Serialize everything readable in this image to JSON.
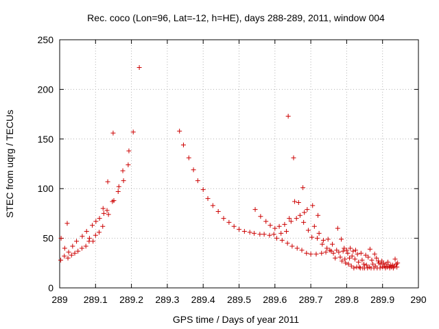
{
  "chart_data": {
    "type": "scatter",
    "title": "Rec. coco (Lon=96, Lat=-12, h=HE), days 288-289, 2011, window 004",
    "xlabel": "GPS time / Days of year 2011",
    "ylabel": "STEC from uqrg / TECUs",
    "xlim": [
      289,
      290
    ],
    "ylim": [
      0,
      250
    ],
    "xticks": [
      "289",
      "289.1",
      "289.2",
      "289.3",
      "289.4",
      "289.5",
      "289.6",
      "289.7",
      "289.8",
      "289.9",
      "290"
    ],
    "yticks": [
      "0",
      "50",
      "100",
      "150",
      "200",
      "250"
    ],
    "grid": true,
    "marker": "+",
    "color": "#cc0000",
    "series": [
      {
        "name": "STEC",
        "points": [
          [
            289.003,
            28
          ],
          [
            289.004,
            50
          ],
          [
            289.013,
            32
          ],
          [
            289.014,
            40
          ],
          [
            289.021,
            65
          ],
          [
            289.023,
            30
          ],
          [
            289.025,
            36
          ],
          [
            289.033,
            33
          ],
          [
            289.036,
            42
          ],
          [
            289.042,
            35
          ],
          [
            289.047,
            47
          ],
          [
            289.051,
            37
          ],
          [
            289.062,
            40
          ],
          [
            289.063,
            52
          ],
          [
            289.073,
            42
          ],
          [
            289.075,
            57
          ],
          [
            289.082,
            47
          ],
          [
            289.083,
            50
          ],
          [
            289.091,
            63
          ],
          [
            289.093,
            47
          ],
          [
            289.1,
            53
          ],
          [
            289.101,
            67
          ],
          [
            289.11,
            56
          ],
          [
            289.111,
            70
          ],
          [
            289.12,
            62
          ],
          [
            289.121,
            80
          ],
          [
            289.123,
            75
          ],
          [
            289.132,
            78
          ],
          [
            289.134,
            107
          ],
          [
            289.136,
            74
          ],
          [
            289.147,
            87
          ],
          [
            289.149,
            156
          ],
          [
            289.151,
            88
          ],
          [
            289.163,
            97
          ],
          [
            289.165,
            102
          ],
          [
            289.176,
            118
          ],
          [
            289.178,
            108
          ],
          [
            289.191,
            124
          ],
          [
            289.193,
            138
          ],
          [
            289.205,
            157
          ],
          [
            289.222,
            222
          ],
          [
            289.334,
            158
          ],
          [
            289.345,
            144
          ],
          [
            289.36,
            131
          ],
          [
            289.373,
            119
          ],
          [
            289.385,
            108
          ],
          [
            289.4,
            99
          ],
          [
            289.413,
            90
          ],
          [
            289.427,
            83
          ],
          [
            289.442,
            77
          ],
          [
            289.457,
            70
          ],
          [
            289.472,
            66
          ],
          [
            289.486,
            62
          ],
          [
            289.5,
            59
          ],
          [
            289.515,
            57
          ],
          [
            289.53,
            56
          ],
          [
            289.542,
            55
          ],
          [
            289.545,
            79
          ],
          [
            289.558,
            54
          ],
          [
            289.56,
            72
          ],
          [
            289.57,
            54
          ],
          [
            289.575,
            67
          ],
          [
            289.585,
            53
          ],
          [
            289.587,
            63
          ],
          [
            289.597,
            54
          ],
          [
            289.6,
            60
          ],
          [
            289.605,
            50
          ],
          [
            289.612,
            62
          ],
          [
            289.617,
            55
          ],
          [
            289.62,
            48
          ],
          [
            289.627,
            64
          ],
          [
            289.632,
            57
          ],
          [
            289.635,
            45
          ],
          [
            289.637,
            173
          ],
          [
            289.64,
            70
          ],
          [
            289.645,
            67
          ],
          [
            289.648,
            42
          ],
          [
            289.652,
            131
          ],
          [
            289.655,
            87
          ],
          [
            289.66,
            70
          ],
          [
            289.662,
            40
          ],
          [
            289.666,
            86
          ],
          [
            289.67,
            73
          ],
          [
            289.675,
            38
          ],
          [
            289.678,
            101
          ],
          [
            289.68,
            66
          ],
          [
            289.682,
            76
          ],
          [
            289.688,
            35
          ],
          [
            289.69,
            79
          ],
          [
            289.693,
            58
          ],
          [
            289.7,
            34
          ],
          [
            289.703,
            51
          ],
          [
            289.705,
            83
          ],
          [
            289.71,
            62
          ],
          [
            289.715,
            34
          ],
          [
            289.718,
            50
          ],
          [
            289.72,
            73
          ],
          [
            289.723,
            55
          ],
          [
            289.73,
            35
          ],
          [
            289.732,
            44
          ],
          [
            289.735,
            48
          ],
          [
            289.742,
            36
          ],
          [
            289.745,
            40
          ],
          [
            289.748,
            49
          ],
          [
            289.753,
            38
          ],
          [
            289.757,
            37
          ],
          [
            289.76,
            44
          ],
          [
            289.763,
            35
          ],
          [
            289.768,
            30
          ],
          [
            289.772,
            38
          ],
          [
            289.775,
            60
          ],
          [
            289.778,
            36
          ],
          [
            289.782,
            31
          ],
          [
            289.785,
            49
          ],
          [
            289.787,
            27
          ],
          [
            289.79,
            37
          ],
          [
            289.793,
            40
          ],
          [
            289.795,
            29
          ],
          [
            289.797,
            25
          ],
          [
            289.8,
            38
          ],
          [
            289.803,
            35
          ],
          [
            289.805,
            24
          ],
          [
            289.808,
            30
          ],
          [
            289.81,
            40
          ],
          [
            289.813,
            22
          ],
          [
            289.815,
            32
          ],
          [
            289.818,
            37
          ],
          [
            289.82,
            20
          ],
          [
            289.823,
            29
          ],
          [
            289.825,
            38
          ],
          [
            289.828,
            21
          ],
          [
            289.83,
            34
          ],
          [
            289.833,
            26
          ],
          [
            289.835,
            21
          ],
          [
            289.838,
            20
          ],
          [
            289.84,
            35
          ],
          [
            289.843,
            28
          ],
          [
            289.845,
            20
          ],
          [
            289.848,
            24
          ],
          [
            289.85,
            20
          ],
          [
            289.853,
            33
          ],
          [
            289.855,
            23
          ],
          [
            289.858,
            20
          ],
          [
            289.86,
            31
          ],
          [
            289.863,
            21
          ],
          [
            289.865,
            39
          ],
          [
            289.868,
            20
          ],
          [
            289.87,
            28
          ],
          [
            289.873,
            24
          ],
          [
            289.876,
            20
          ],
          [
            289.878,
            34
          ],
          [
            289.88,
            22
          ],
          [
            289.883,
            30
          ],
          [
            289.885,
            20
          ],
          [
            289.888,
            27
          ],
          [
            289.89,
            25
          ],
          [
            289.893,
            20
          ],
          [
            289.895,
            24
          ],
          [
            289.898,
            27
          ],
          [
            289.9,
            21
          ],
          [
            289.903,
            25
          ],
          [
            289.905,
            22
          ],
          [
            289.908,
            20
          ],
          [
            289.91,
            24
          ],
          [
            289.913,
            21
          ],
          [
            289.915,
            26
          ],
          [
            289.918,
            22
          ],
          [
            289.92,
            20
          ],
          [
            289.923,
            23
          ],
          [
            289.925,
            21
          ],
          [
            289.928,
            23
          ],
          [
            289.93,
            20
          ],
          [
            289.933,
            22
          ],
          [
            289.935,
            29
          ],
          [
            289.938,
            24
          ],
          [
            289.94,
            21
          ],
          [
            289.942,
            25
          ]
        ]
      }
    ]
  }
}
